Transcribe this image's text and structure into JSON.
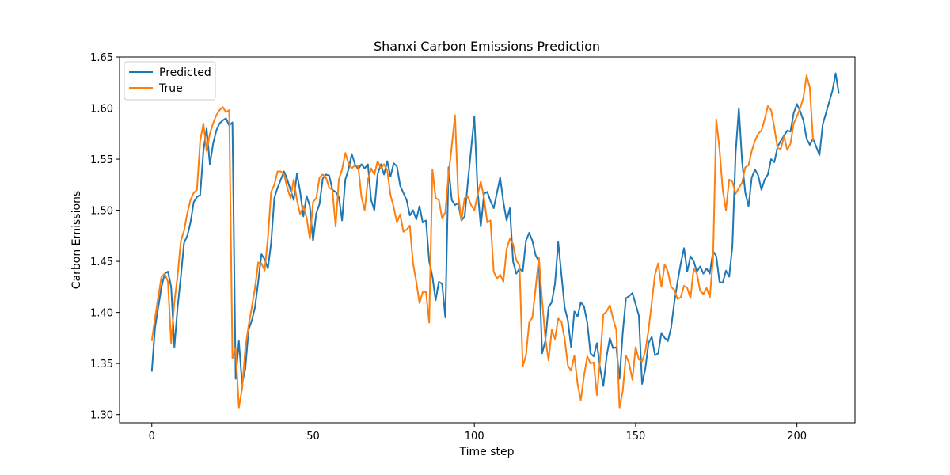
{
  "chart_data": {
    "type": "line",
    "title": "Shanxi Carbon Emissions Prediction",
    "xlabel": "Time step",
    "ylabel": "Carbon Emissions",
    "xlim": [
      -10,
      218
    ],
    "ylim": [
      1.292,
      1.65
    ],
    "x_ticks": [
      0,
      50,
      100,
      150,
      200
    ],
    "y_ticks": [
      1.3,
      1.35,
      1.4,
      1.45,
      1.5,
      1.55,
      1.6,
      1.65
    ],
    "grid": false,
    "legend_position": "top-left",
    "series": [
      {
        "name": "Predicted",
        "color": "#1f77b4",
        "values": [
          1.342,
          1.385,
          1.405,
          1.425,
          1.438,
          1.44,
          1.425,
          1.366,
          1.405,
          1.435,
          1.468,
          1.475,
          1.488,
          1.508,
          1.513,
          1.515,
          1.558,
          1.58,
          1.545,
          1.565,
          1.578,
          1.585,
          1.588,
          1.59,
          1.583,
          1.586,
          1.335,
          1.372,
          1.33,
          1.345,
          1.383,
          1.392,
          1.405,
          1.43,
          1.457,
          1.452,
          1.443,
          1.468,
          1.512,
          1.522,
          1.53,
          1.538,
          1.53,
          1.52,
          1.51,
          1.536,
          1.518,
          1.494,
          1.514,
          1.504,
          1.47,
          1.497,
          1.506,
          1.531,
          1.535,
          1.534,
          1.52,
          1.518,
          1.513,
          1.49,
          1.53,
          1.54,
          1.555,
          1.545,
          1.54,
          1.545,
          1.541,
          1.545,
          1.51,
          1.5,
          1.535,
          1.545,
          1.535,
          1.548,
          1.533,
          1.546,
          1.543,
          1.524,
          1.517,
          1.51,
          1.495,
          1.5,
          1.491,
          1.504,
          1.488,
          1.49,
          1.45,
          1.435,
          1.412,
          1.43,
          1.428,
          1.395,
          1.542,
          1.51,
          1.505,
          1.507,
          1.49,
          1.494,
          1.528,
          1.56,
          1.592,
          1.52,
          1.484,
          1.516,
          1.518,
          1.509,
          1.502,
          1.517,
          1.532,
          1.508,
          1.49,
          1.502,
          1.45,
          1.438,
          1.443,
          1.44,
          1.47,
          1.478,
          1.47,
          1.456,
          1.45,
          1.36,
          1.372,
          1.405,
          1.41,
          1.428,
          1.469,
          1.437,
          1.405,
          1.392,
          1.366,
          1.401,
          1.396,
          1.41,
          1.406,
          1.39,
          1.36,
          1.357,
          1.37,
          1.345,
          1.328,
          1.357,
          1.375,
          1.365,
          1.366,
          1.335,
          1.38,
          1.414,
          1.416,
          1.419,
          1.408,
          1.397,
          1.33,
          1.345,
          1.37,
          1.376,
          1.358,
          1.36,
          1.38,
          1.375,
          1.372,
          1.385,
          1.41,
          1.43,
          1.448,
          1.463,
          1.44,
          1.455,
          1.45,
          1.44,
          1.445,
          1.438,
          1.443,
          1.438,
          1.46,
          1.455,
          1.43,
          1.429,
          1.441,
          1.435,
          1.465,
          1.556,
          1.6,
          1.548,
          1.517,
          1.504,
          1.532,
          1.54,
          1.534,
          1.52,
          1.53,
          1.535,
          1.55,
          1.547,
          1.562,
          1.568,
          1.573,
          1.578,
          1.577,
          1.595,
          1.604,
          1.597,
          1.588,
          1.57,
          1.564,
          1.57,
          1.562,
          1.554,
          1.584,
          1.595,
          1.606,
          1.617,
          1.634,
          1.614
        ]
      },
      {
        "name": "True",
        "color": "#ff7f0e",
        "values": [
          1.372,
          1.395,
          1.415,
          1.435,
          1.438,
          1.43,
          1.37,
          1.41,
          1.436,
          1.47,
          1.48,
          1.497,
          1.51,
          1.517,
          1.52,
          1.568,
          1.585,
          1.558,
          1.575,
          1.585,
          1.593,
          1.598,
          1.601,
          1.596,
          1.598,
          1.355,
          1.365,
          1.307,
          1.325,
          1.365,
          1.387,
          1.405,
          1.424,
          1.449,
          1.448,
          1.441,
          1.473,
          1.518,
          1.525,
          1.538,
          1.538,
          1.535,
          1.522,
          1.512,
          1.53,
          1.51,
          1.496,
          1.504,
          1.493,
          1.472,
          1.508,
          1.512,
          1.532,
          1.535,
          1.532,
          1.522,
          1.52,
          1.484,
          1.53,
          1.54,
          1.556,
          1.546,
          1.541,
          1.544,
          1.543,
          1.513,
          1.5,
          1.53,
          1.541,
          1.535,
          1.548,
          1.541,
          1.545,
          1.539,
          1.515,
          1.503,
          1.488,
          1.496,
          1.479,
          1.481,
          1.485,
          1.448,
          1.43,
          1.409,
          1.42,
          1.42,
          1.39,
          1.54,
          1.512,
          1.51,
          1.492,
          1.498,
          1.535,
          1.563,
          1.593,
          1.515,
          1.49,
          1.512,
          1.513,
          1.505,
          1.5,
          1.515,
          1.528,
          1.512,
          1.488,
          1.49,
          1.44,
          1.433,
          1.437,
          1.43,
          1.462,
          1.472,
          1.467,
          1.451,
          1.446,
          1.347,
          1.358,
          1.39,
          1.395,
          1.424,
          1.454,
          1.412,
          1.375,
          1.353,
          1.383,
          1.374,
          1.394,
          1.391,
          1.374,
          1.348,
          1.343,
          1.358,
          1.33,
          1.314,
          1.338,
          1.357,
          1.35,
          1.351,
          1.319,
          1.355,
          1.398,
          1.401,
          1.407,
          1.394,
          1.383,
          1.307,
          1.323,
          1.358,
          1.35,
          1.334,
          1.366,
          1.354,
          1.352,
          1.362,
          1.383,
          1.41,
          1.437,
          1.448,
          1.425,
          1.447,
          1.44,
          1.425,
          1.422,
          1.413,
          1.415,
          1.426,
          1.424,
          1.414,
          1.443,
          1.438,
          1.421,
          1.418,
          1.424,
          1.415,
          1.452,
          1.589,
          1.56,
          1.52,
          1.5,
          1.53,
          1.528,
          1.516,
          1.522,
          1.527,
          1.542,
          1.544,
          1.558,
          1.568,
          1.575,
          1.578,
          1.589,
          1.602,
          1.598,
          1.581,
          1.561,
          1.56,
          1.572,
          1.559,
          1.565,
          1.585,
          1.592,
          1.6,
          1.61,
          1.632,
          1.62,
          1.568
        ]
      }
    ]
  }
}
